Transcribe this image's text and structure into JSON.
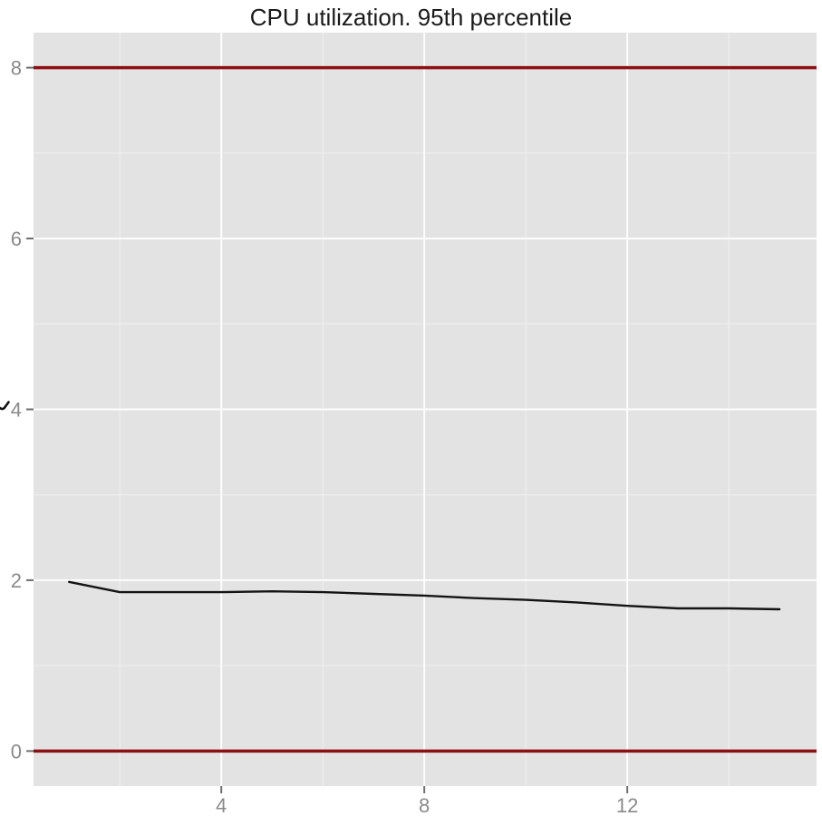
{
  "chart_data": {
    "type": "line",
    "title": "CPU utilization. 95th percentile",
    "xlabel": "",
    "ylabel": "",
    "x": [
      1,
      2,
      3,
      4,
      5,
      6,
      7,
      8,
      9,
      10,
      11,
      12,
      13,
      14,
      15
    ],
    "series": [
      {
        "name": "cpu_utilization_95th_percentile",
        "color": "#141414",
        "values": [
          1.98,
          1.86,
          1.86,
          1.86,
          1.87,
          1.86,
          1.84,
          1.82,
          1.79,
          1.77,
          1.74,
          1.7,
          1.67,
          1.67,
          1.66
        ]
      }
    ],
    "reference_lines": [
      {
        "y": 0,
        "color": "#8c1113"
      },
      {
        "y": 8,
        "color": "#8c1113"
      }
    ],
    "xlim": [
      0.3,
      15.73
    ],
    "ylim": [
      -0.41,
      8.41
    ],
    "x_major_ticks": [
      4,
      8,
      12
    ],
    "x_minor_gridlines": [
      2,
      6,
      10,
      14
    ],
    "y_major_ticks": [
      0,
      2,
      4,
      6,
      8
    ],
    "y_minor_gridlines": [
      1,
      3,
      5,
      7
    ],
    "grid": "on",
    "legend_position": "none",
    "style": {
      "panel_background": "#e3e3e3",
      "grid_major_color": "#fdfdfd",
      "grid_minor_color": "#eeeeee",
      "tick_label_color": "#8a8a8a",
      "tick_mark_color": "#6e6e6e",
      "title_color": "#1a1a1a"
    }
  }
}
